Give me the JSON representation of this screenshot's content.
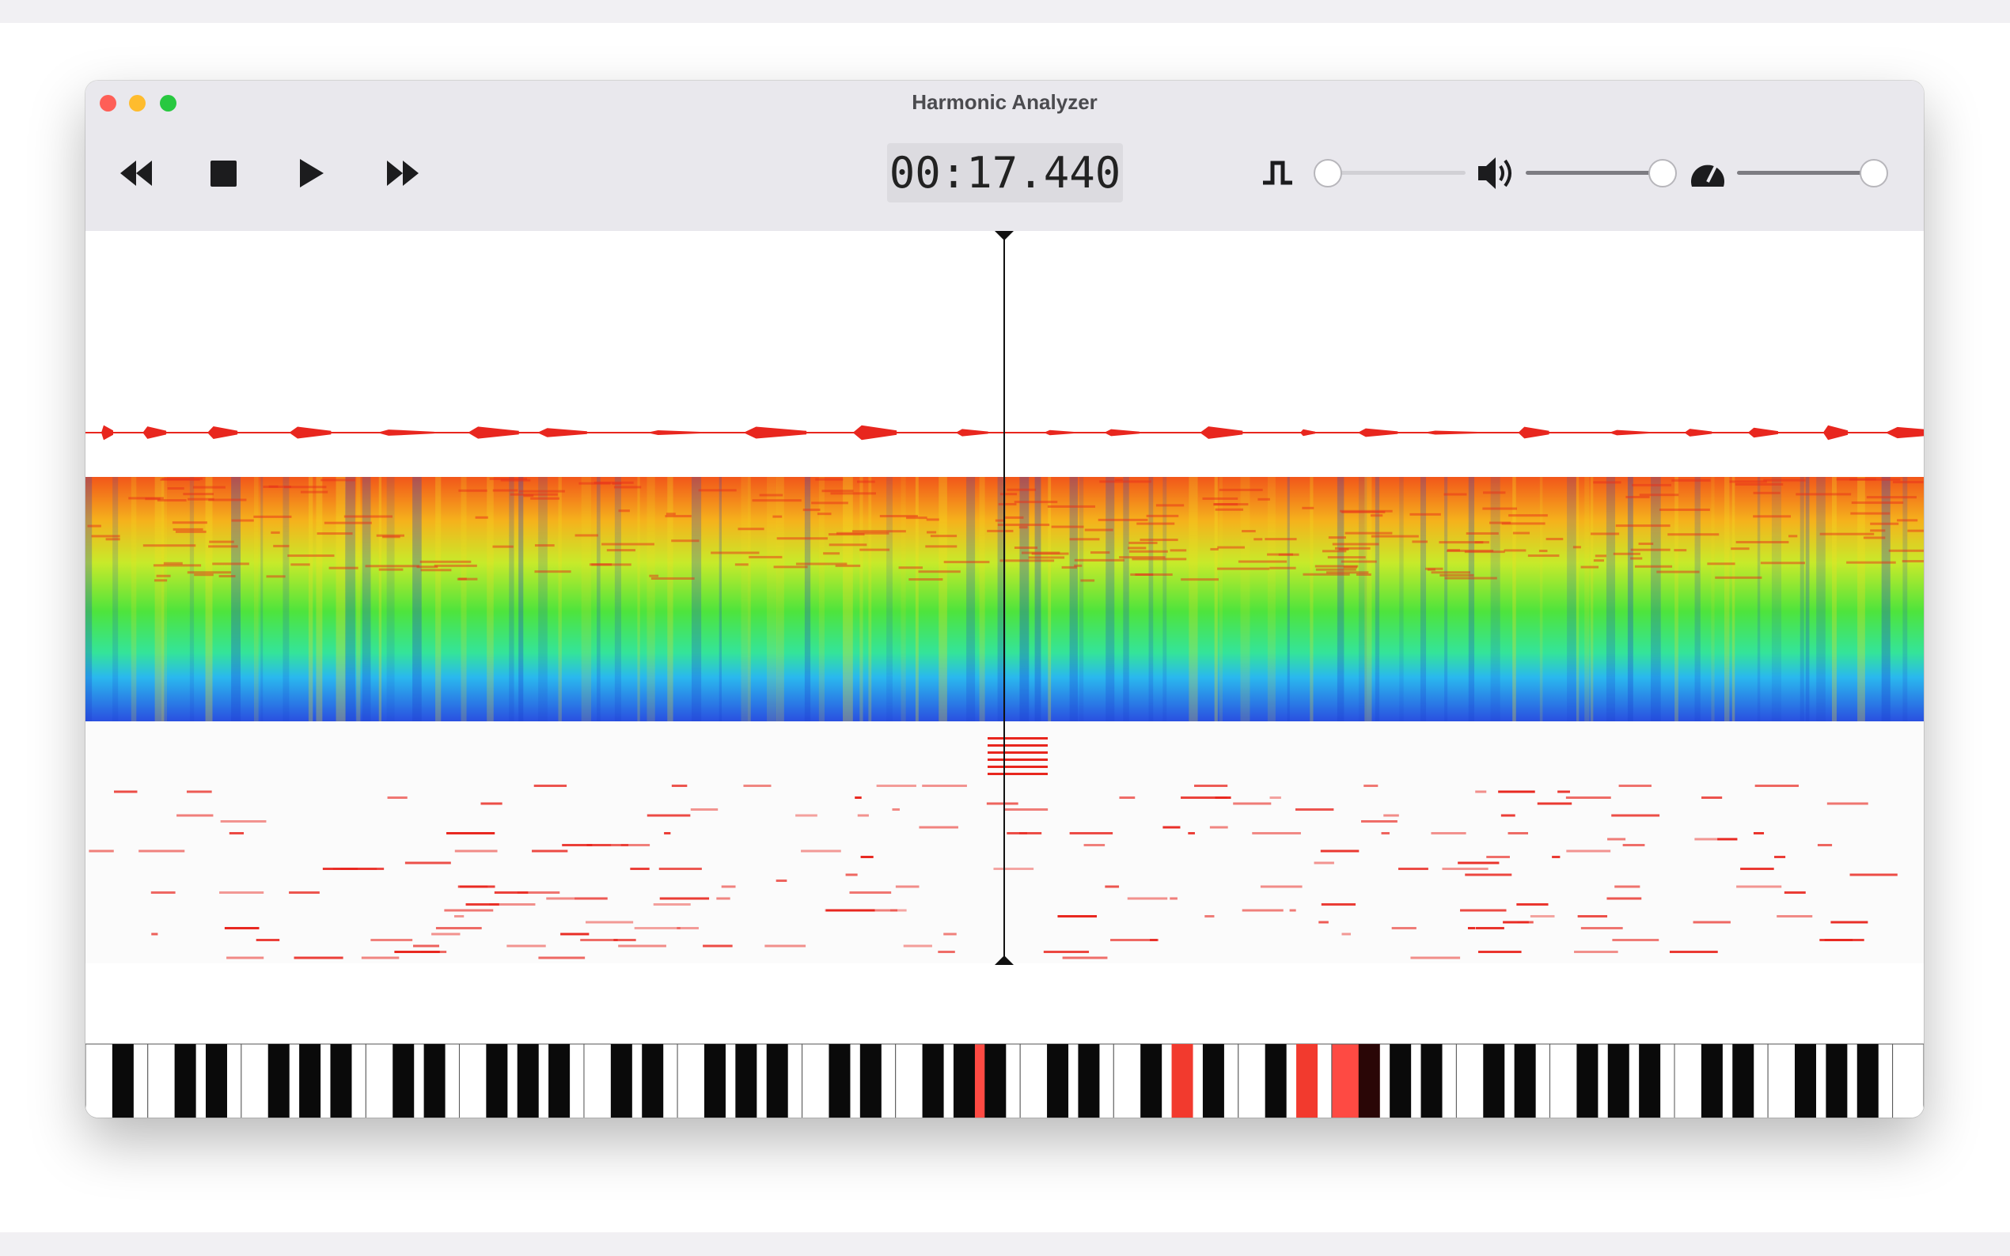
{
  "window": {
    "title": "Harmonic Analyzer"
  },
  "toolbar": {
    "time": "00:17.440"
  }
}
